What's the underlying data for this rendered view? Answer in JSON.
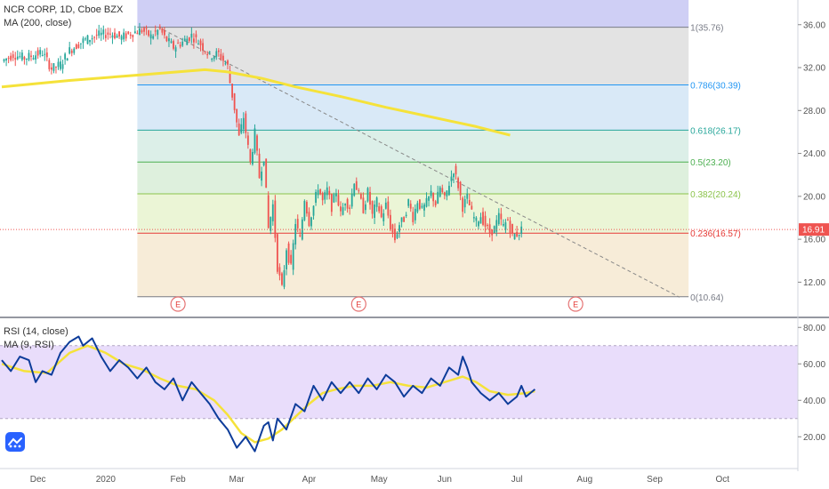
{
  "chart": {
    "title": "NCR CORP, 1D, Cboe BZX",
    "ma_label": "MA (200, close)",
    "rsi_label": "RSI (14, close)",
    "rsi_ma_label": "MA (9, RSI)",
    "last_price": "16.91",
    "earnings_marker": "E"
  },
  "colors": {
    "up": "#26a69a",
    "down": "#ef5350",
    "ma200": "#f5e23a",
    "rsi": "#0d3c9a",
    "rsi_ma": "#f5e23a",
    "rsi_band": "#e9ddfb",
    "trendline": "#888888",
    "last_price": "#ef5350"
  },
  "chart_data": [
    {
      "type": "candlestick",
      "title": "NCR CORP, 1D, Cboe BZX",
      "x_tick_labels": [
        "Dec",
        "2020",
        "Feb",
        "Mar",
        "Apr",
        "May",
        "Jun",
        "Jul",
        "Aug",
        "Sep",
        "Oct"
      ],
      "y_tick_labels": [
        "12.00",
        "16.00",
        "20.00",
        "24.00",
        "28.00",
        "32.00",
        "36.00"
      ],
      "ylim": [
        8.8,
        38.3
      ],
      "last_price": 16.91,
      "close_path": [
        [
          0,
          32.6
        ],
        [
          5,
          33.2
        ],
        [
          10,
          32.9
        ],
        [
          18,
          33.4
        ],
        [
          22,
          31.9
        ],
        [
          26,
          32.3
        ],
        [
          30,
          33.6
        ],
        [
          36,
          34.5
        ],
        [
          42,
          35.0
        ],
        [
          48,
          35.2
        ],
        [
          53,
          34.8
        ],
        [
          57,
          35.2
        ],
        [
          62,
          35.5
        ],
        [
          66,
          34.9
        ],
        [
          70,
          35.6
        ],
        [
          72,
          34.8
        ],
        [
          76,
          33.9
        ],
        [
          80,
          34.4
        ],
        [
          84,
          35.0
        ],
        [
          88,
          34.2
        ],
        [
          92,
          33.1
        ],
        [
          96,
          33.3
        ],
        [
          100,
          32.1
        ],
        [
          101,
          30.6
        ],
        [
          103,
          28.2
        ],
        [
          105,
          25.5
        ],
        [
          107,
          27.4
        ],
        [
          110,
          23.1
        ],
        [
          112,
          25.9
        ],
        [
          114,
          21.8
        ],
        [
          116,
          23.7
        ],
        [
          118,
          17.0
        ],
        [
          120,
          19.2
        ],
        [
          122,
          13.4
        ],
        [
          124,
          11.4
        ],
        [
          126,
          15.2
        ],
        [
          128,
          13.3
        ],
        [
          130,
          17.6
        ],
        [
          132,
          16.0
        ],
        [
          134,
          19.8
        ],
        [
          136,
          17.6
        ],
        [
          138,
          19.1
        ],
        [
          140,
          20.9
        ],
        [
          142,
          19.5
        ],
        [
          144,
          20.6
        ],
        [
          146,
          19.0
        ],
        [
          148,
          20.5
        ],
        [
          150,
          18.3
        ],
        [
          152,
          19.6
        ],
        [
          154,
          19.0
        ],
        [
          156,
          21.5
        ],
        [
          158,
          20.1
        ],
        [
          160,
          18.8
        ],
        [
          162,
          20.4
        ],
        [
          164,
          18.2
        ],
        [
          166,
          19.5
        ],
        [
          168,
          18.0
        ],
        [
          170,
          19.2
        ],
        [
          172,
          17.2
        ],
        [
          174,
          16.0
        ],
        [
          176,
          17.4
        ],
        [
          178,
          17.9
        ],
        [
          180,
          19.5
        ],
        [
          182,
          18.0
        ],
        [
          184,
          19.6
        ],
        [
          186,
          18.7
        ],
        [
          188,
          19.4
        ],
        [
          190,
          20.3
        ],
        [
          192,
          19.3
        ],
        [
          194,
          20.8
        ],
        [
          196,
          19.7
        ],
        [
          198,
          21.2
        ],
        [
          200,
          22.5
        ],
        [
          202,
          21.0
        ],
        [
          204,
          19.0
        ],
        [
          206,
          19.9
        ],
        [
          208,
          18.4
        ],
        [
          210,
          17.6
        ],
        [
          212,
          18.2
        ],
        [
          214,
          17.3
        ],
        [
          216,
          16.6
        ],
        [
          218,
          17.0
        ],
        [
          220,
          18.1
        ],
        [
          222,
          17.2
        ],
        [
          224,
          17.8
        ],
        [
          226,
          16.3
        ],
        [
          228,
          16.5
        ],
        [
          230,
          16.91
        ]
      ],
      "ma200_path": [
        [
          0,
          30.2
        ],
        [
          30,
          30.8
        ],
        [
          60,
          31.3
        ],
        [
          90,
          31.8
        ],
        [
          100,
          31.6
        ],
        [
          115,
          31.0
        ],
        [
          130,
          30.2
        ],
        [
          150,
          29.3
        ],
        [
          170,
          28.3
        ],
        [
          190,
          27.4
        ],
        [
          210,
          26.5
        ],
        [
          225,
          25.7
        ]
      ],
      "fibonacci": {
        "levels": [
          {
            "ratio": "1",
            "price": 35.76,
            "label": "1(35.76)",
            "color": "#787b86"
          },
          {
            "ratio": "0.786",
            "price": 30.39,
            "label": "0.786(30.39)",
            "color": "#2196f3"
          },
          {
            "ratio": "0.618",
            "price": 26.17,
            "label": "0.618(26.17)",
            "color": "#26a69a"
          },
          {
            "ratio": "0.5",
            "price": 23.2,
            "label": "0.5(23.20)",
            "color": "#4caf50"
          },
          {
            "ratio": "0.382",
            "price": 20.24,
            "label": "0.382(20.24)",
            "color": "#8bc34a"
          },
          {
            "ratio": "0.236",
            "price": 16.57,
            "label": "0.236(16.57)",
            "color": "#e53935"
          },
          {
            "ratio": "0",
            "price": 10.64,
            "label": "0(10.64)",
            "color": "#787b86"
          }
        ]
      },
      "trendline": [
        [
          69,
          35.8
        ],
        [
          300,
          10.6
        ]
      ],
      "earnings_days": [
        78,
        158,
        254
      ]
    },
    {
      "type": "line",
      "title": "RSI (14, close)",
      "y_tick_labels": [
        "20.00",
        "40.00",
        "60.00",
        "80.00"
      ],
      "ylim": [
        5,
        85
      ],
      "band": [
        30,
        70
      ],
      "series": [
        {
          "name": "RSI (14, close)",
          "values": [
            [
              0,
              62
            ],
            [
              4,
              56
            ],
            [
              8,
              64
            ],
            [
              12,
              62
            ],
            [
              15,
              50
            ],
            [
              18,
              56
            ],
            [
              22,
              54
            ],
            [
              26,
              66
            ],
            [
              30,
              72
            ],
            [
              34,
              75
            ],
            [
              36,
              70
            ],
            [
              40,
              74
            ],
            [
              44,
              64
            ],
            [
              48,
              56
            ],
            [
              52,
              62
            ],
            [
              56,
              58
            ],
            [
              60,
              52
            ],
            [
              64,
              58
            ],
            [
              68,
              50
            ],
            [
              72,
              46
            ],
            [
              76,
              52
            ],
            [
              80,
              40
            ],
            [
              84,
              50
            ],
            [
              88,
              44
            ],
            [
              92,
              38
            ],
            [
              96,
              30
            ],
            [
              100,
              24
            ],
            [
              104,
              14
            ],
            [
              108,
              20
            ],
            [
              112,
              12
            ],
            [
              116,
              26
            ],
            [
              118,
              28
            ],
            [
              120,
              18
            ],
            [
              122,
              30
            ],
            [
              126,
              24
            ],
            [
              130,
              38
            ],
            [
              134,
              34
            ],
            [
              138,
              48
            ],
            [
              142,
              40
            ],
            [
              146,
              50
            ],
            [
              150,
              44
            ],
            [
              154,
              50
            ],
            [
              158,
              44
            ],
            [
              162,
              52
            ],
            [
              166,
              46
            ],
            [
              170,
              54
            ],
            [
              174,
              50
            ],
            [
              178,
              42
            ],
            [
              182,
              48
            ],
            [
              186,
              44
            ],
            [
              190,
              52
            ],
            [
              194,
              48
            ],
            [
              198,
              58
            ],
            [
              202,
              54
            ],
            [
              204,
              64
            ],
            [
              206,
              58
            ],
            [
              208,
              50
            ],
            [
              212,
              44
            ],
            [
              216,
              40
            ],
            [
              220,
              44
            ],
            [
              224,
              38
            ],
            [
              228,
              42
            ],
            [
              230,
              48
            ],
            [
              232,
              42
            ],
            [
              236,
              46
            ]
          ]
        },
        {
          "name": "MA (9, RSI)",
          "values": [
            [
              0,
              60
            ],
            [
              10,
              56
            ],
            [
              20,
              55
            ],
            [
              30,
              66
            ],
            [
              38,
              70
            ],
            [
              46,
              66
            ],
            [
              54,
              60
            ],
            [
              62,
              57
            ],
            [
              70,
              52
            ],
            [
              78,
              48
            ],
            [
              86,
              46
            ],
            [
              94,
              40
            ],
            [
              100,
              32
            ],
            [
              106,
              22
            ],
            [
              112,
              17
            ],
            [
              118,
              19
            ],
            [
              124,
              24
            ],
            [
              130,
              31
            ],
            [
              136,
              38
            ],
            [
              142,
              44
            ],
            [
              148,
              46
            ],
            [
              156,
              48
            ],
            [
              164,
              48
            ],
            [
              172,
              50
            ],
            [
              180,
              48
            ],
            [
              188,
              47
            ],
            [
              196,
              50
            ],
            [
              204,
              53
            ],
            [
              210,
              50
            ],
            [
              216,
              45
            ],
            [
              224,
              43
            ],
            [
              232,
              44
            ],
            [
              236,
              45
            ]
          ]
        }
      ]
    }
  ]
}
